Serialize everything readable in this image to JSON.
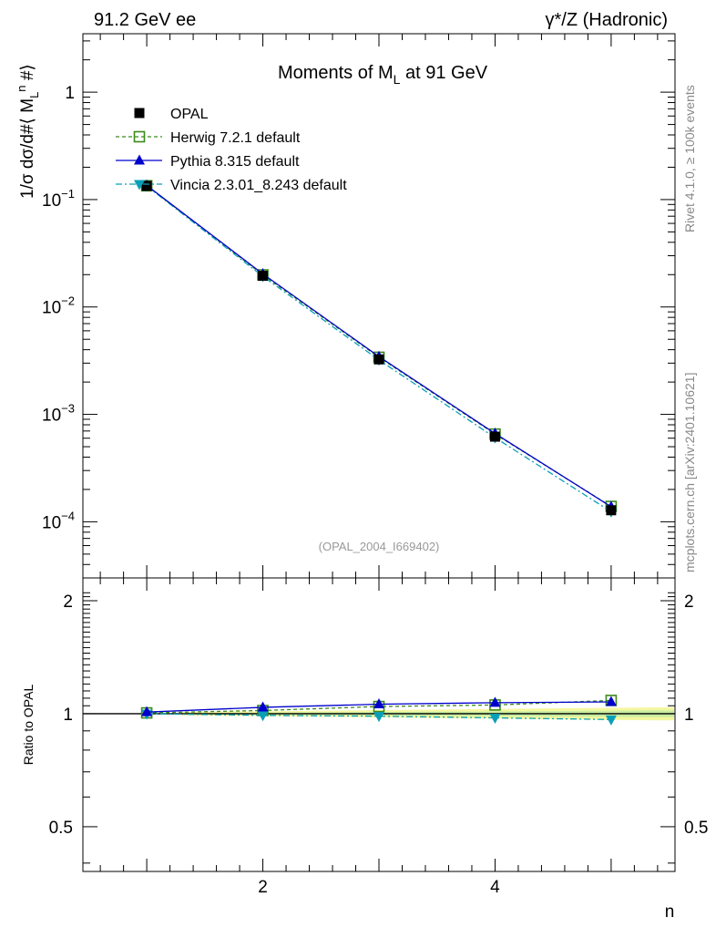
{
  "header": {
    "left": "91.2 GeV ee",
    "right": "γ*/Z (Hadronic)"
  },
  "side": {
    "rivet": "Rivet 4.1.0, ≥ 100k events",
    "mcplots": "mcplots.cern.ch [arXiv:2401.10621]"
  },
  "chart_data": {
    "type": "line",
    "title": "Moments of M_L at 91 GeV",
    "analysis_label": "(OPAL_2004_I669402)",
    "xlabel": "n",
    "ylabel": "1/σ  dσ/d#⟨ M_L^n #⟩",
    "ratio_ylabel": "Ratio to OPAL",
    "x": [
      1,
      2,
      3,
      4,
      5
    ],
    "xlim": [
      0.45,
      5.55
    ],
    "ylim": [
      3e-05,
      3.5
    ],
    "ratio_ylim": [
      0.38,
      2.3
    ],
    "x_ticks": [
      "2",
      "4"
    ],
    "y_ticks": [
      {
        "base": "1",
        "exp": ""
      },
      {
        "base": "10",
        "exp": "−1"
      },
      {
        "base": "10",
        "exp": "−2"
      },
      {
        "base": "10",
        "exp": "−3"
      },
      {
        "base": "10",
        "exp": "−4"
      }
    ],
    "ratio_ticks": [
      "2",
      "1",
      "0.5"
    ],
    "series": [
      {
        "name": "OPAL",
        "values": [
          0.134,
          0.0195,
          0.00325,
          0.00062,
          0.000128
        ],
        "color": "#000000",
        "marker": "square",
        "dash": ""
      },
      {
        "name": "Herwig 7.2.1 default",
        "values": [
          0.1345,
          0.0199,
          0.0034,
          0.000655,
          0.000139
        ],
        "ratio": [
          1.005,
          1.02,
          1.045,
          1.055,
          1.085
        ],
        "color": "#3a8a1a",
        "marker": "open-square",
        "dash": "4,3"
      },
      {
        "name": "Pythia 8.315 default",
        "values": [
          0.1355,
          0.0203,
          0.00345,
          0.000664,
          0.000138
        ],
        "ratio": [
          1.01,
          1.04,
          1.06,
          1.07,
          1.075
        ],
        "color": "#0000cc",
        "marker": "triangle-up",
        "dash": ""
      },
      {
        "name": "Vincia 2.3.01_8.243 default",
        "values": [
          0.1335,
          0.0193,
          0.00321,
          0.000607,
          0.000124
        ],
        "ratio": [
          1.0,
          0.99,
          0.985,
          0.975,
          0.965
        ],
        "color": "#0a9fb8",
        "marker": "triangle-down",
        "dash": "7,3,2,3"
      }
    ]
  }
}
